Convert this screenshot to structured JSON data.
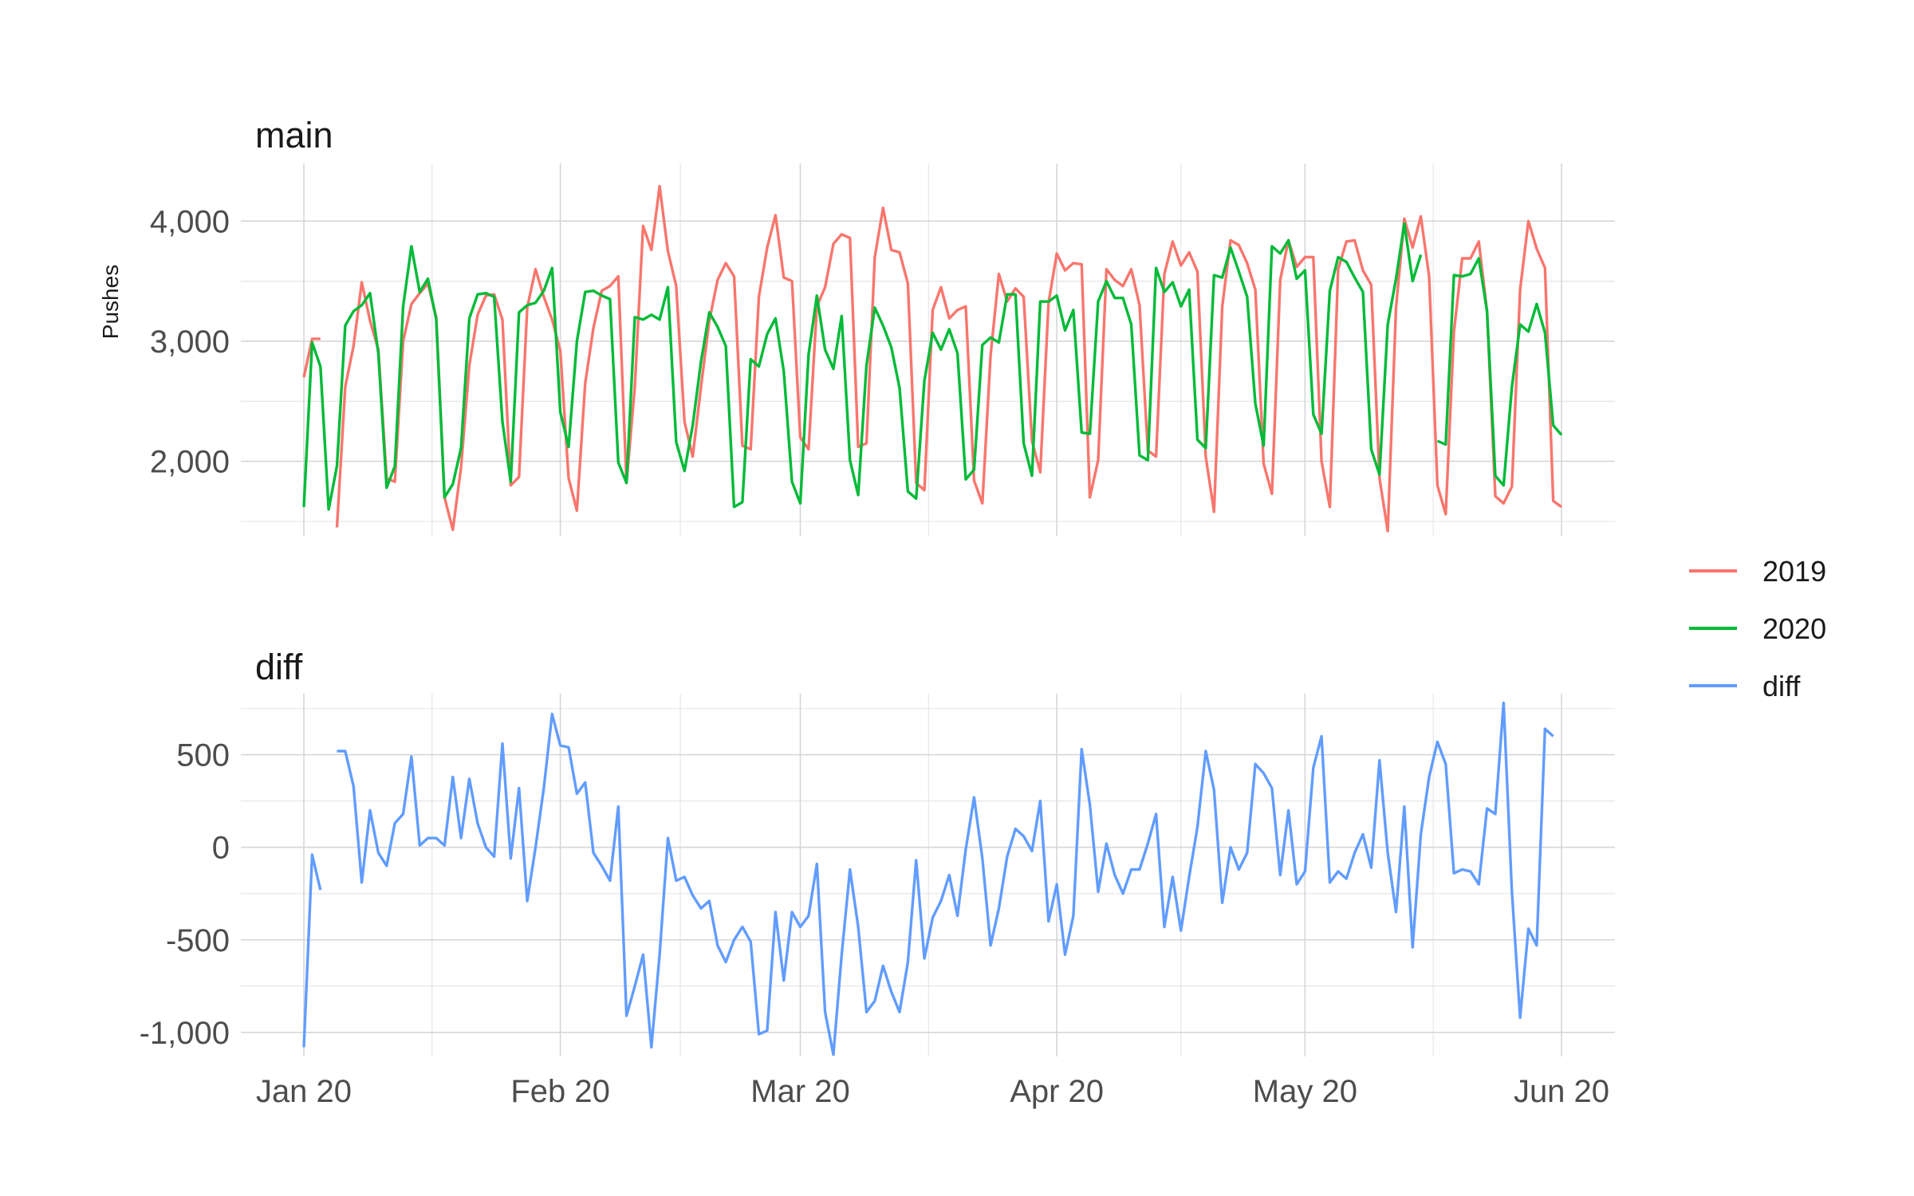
{
  "chart_data": {
    "type": "line",
    "start_date": "2020-01-01",
    "x_tick_labels": [
      "Jan 20",
      "Feb 20",
      "Mar 20",
      "Apr 20",
      "May 20",
      "Jun 20"
    ],
    "x_tick_dates": [
      "2020-01-01",
      "2020-02-01",
      "2020-03-01",
      "2020-04-01",
      "2020-05-01",
      "2020-06-01"
    ],
    "legend": {
      "position": "right",
      "entries": [
        {
          "label": "2019",
          "color": "#F8766D"
        },
        {
          "label": "2020",
          "color": "#00BA38"
        },
        {
          "label": "diff",
          "color": "#619CFF"
        }
      ]
    },
    "grid": true,
    "panels": [
      {
        "title": "main",
        "ylabel": "Pushes",
        "ylim": [
          1380,
          4480
        ],
        "y_ticks": [
          2000,
          3000,
          4000
        ],
        "y_tick_labels": [
          "2,000",
          "3,000",
          "4,000"
        ],
        "y_minor": [
          1500,
          2500,
          3500
        ],
        "series": [
          {
            "name": "2019",
            "color": "#F8766D",
            "values": [
              2700,
              3020,
              3020,
              null,
              1450,
              2620,
              2960,
              3490,
              3170,
              2930,
              1860,
              1830,
              3000,
              3310,
              3400,
              3480,
              3200,
              1700,
              1430,
              1950,
              2800,
              3220,
              3380,
              3390,
              3180,
              1800,
              1870,
              3280,
              3600,
              3370,
              3180,
              2920,
              1860,
              1590,
              2650,
              3110,
              3420,
              3460,
              3540,
              1820,
              2620,
              3960,
              3760,
              4290,
              3750,
              3460,
              2330,
              2040,
              2620,
              3170,
              3510,
              3650,
              3540,
              2130,
              2100,
              3370,
              3780,
              4050,
              3530,
              3500,
              2200,
              2100,
              3290,
              3450,
              3810,
              3890,
              3860,
              2120,
              2150,
              3700,
              4110,
              3760,
              3740,
              3480,
              1820,
              1760,
              3260,
              3450,
              3190,
              3260,
              3290,
              1840,
              1650,
              2880,
              3560,
              3330,
              3440,
              3370,
              2170,
              1910,
              3320,
              3730,
              3590,
              3650,
              3640,
              1700,
              2010,
              3600,
              3510,
              3460,
              3600,
              3300,
              2090,
              2040,
              3560,
              3830,
              3630,
              3740,
              3580,
              2040,
              1580,
              3290,
              3840,
              3800,
              3650,
              3430,
              1980,
              1730,
              3510,
              3840,
              3620,
              3700,
              3700,
              2000,
              1620,
              3600,
              3830,
              3840,
              3590,
              3470,
              1860,
              1420,
              3280,
              4020,
              3780,
              4040,
              3540,
              1800,
              1560,
              3080,
              3690,
              3690,
              3830,
              3250,
              1710,
              1650,
              1790,
              3430,
              4000,
              3770,
              3610,
              1670,
              1620
            ]
          },
          {
            "name": "2020",
            "color": "#00BA38",
            "values": [
              1620,
              2990,
              2790,
              1600,
              1960,
              3130,
              3250,
              3300,
              3400,
              2900,
              1780,
              1960,
              3290,
              3790,
              3410,
              3520,
              3180,
              1700,
              1810,
              2110,
              3190,
              3390,
              3400,
              3370,
              2330,
              1830,
              3240,
              3300,
              3320,
              3420,
              3610,
              2410,
              2120,
              3000,
              3410,
              3420,
              3380,
              3350,
              1990,
              1820,
              3200,
              3180,
              3220,
              3180,
              3450,
              2160,
              1920,
              2300,
              2830,
              3240,
              3120,
              2960,
              1620,
              1660,
              2850,
              2790,
              3060,
              3190,
              2750,
              1830,
              1650,
              2890,
              3380,
              2930,
              2770,
              3210,
              2010,
              1720,
              2800,
              3280,
              3130,
              2950,
              2610,
              1750,
              1690,
              2670,
              3070,
              2930,
              3100,
              2900,
              1850,
              1930,
              2970,
              3030,
              2990,
              3390,
              3390,
              2150,
              1880,
              3330,
              3330,
              3380,
              3090,
              3260,
              2240,
              2230,
              3330,
              3500,
              3360,
              3360,
              3140,
              2050,
              2010,
              3610,
              3410,
              3490,
              3290,
              3430,
              2180,
              2110,
              3550,
              3530,
              3780,
              3580,
              3370,
              2480,
              2130,
              3790,
              3730,
              3840,
              3520,
              3590,
              2390,
              2230,
              3420,
              3700,
              3660,
              3530,
              3410,
              2100,
              1890,
              3140,
              3520,
              3980,
              3500,
              3720,
              null,
              2170,
              2140,
              3550,
              3540,
              3560,
              3690,
              3250,
              1880,
              1800,
              2620,
              3140,
              3080,
              3310,
              3070,
              2300,
              2220
            ]
          },
          {
            "name": "diff",
            "color": "#619CFF",
            "values": []
          }
        ]
      },
      {
        "title": "diff",
        "ylabel": "",
        "ylim": [
          -1130,
          830
        ],
        "y_ticks": [
          -1000,
          -500,
          0,
          500
        ],
        "y_tick_labels": [
          "-1,000",
          "-500",
          "0",
          "500"
        ],
        "y_minor": [
          -750,
          -250,
          250,
          750
        ],
        "series": [
          {
            "name": "diff",
            "color": "#619CFF",
            "values": [
              -1080,
              -40,
              -230,
              null,
              520,
              520,
              330,
              -190,
              200,
              -30,
              -100,
              130,
              180,
              490,
              10,
              50,
              50,
              10,
              380,
              50,
              370,
              130,
              0,
              -50,
              560,
              -60,
              320,
              -290,
              0,
              320,
              720,
              550,
              540,
              290,
              350,
              -30,
              -100,
              -180,
              220,
              -910,
              -750,
              -580,
              -1080,
              -580,
              50,
              -180,
              -160,
              -260,
              -330,
              -290,
              -530,
              -620,
              -500,
              -430,
              -510,
              -1010,
              -990,
              -350,
              -720,
              -350,
              -430,
              -370,
              -90,
              -890,
              -1120,
              -580,
              -120,
              -430,
              -890,
              -830,
              -640,
              -780,
              -890,
              -620,
              -70,
              -600,
              -380,
              -290,
              -150,
              -370,
              -10,
              270,
              -60,
              -530,
              -330,
              -50,
              100,
              60,
              -20,
              250,
              -400,
              -200,
              -580,
              -370,
              530,
              230,
              -240,
              20,
              -150,
              -250,
              -120,
              -120,
              20,
              180,
              -430,
              -160,
              -450,
              -160,
              110,
              520,
              310,
              -300,
              0,
              -120,
              -30,
              450,
              400,
              320,
              -150,
              200,
              -200,
              -130,
              430,
              600,
              -190,
              -130,
              -170,
              -30,
              70,
              -110,
              470,
              -30,
              -350,
              220,
              -540,
              70,
              380,
              570,
              450,
              -140,
              -120,
              -130,
              -200,
              210,
              180,
              780,
              -240,
              -920,
              -440,
              -530,
              640,
              600
            ]
          }
        ]
      }
    ]
  }
}
